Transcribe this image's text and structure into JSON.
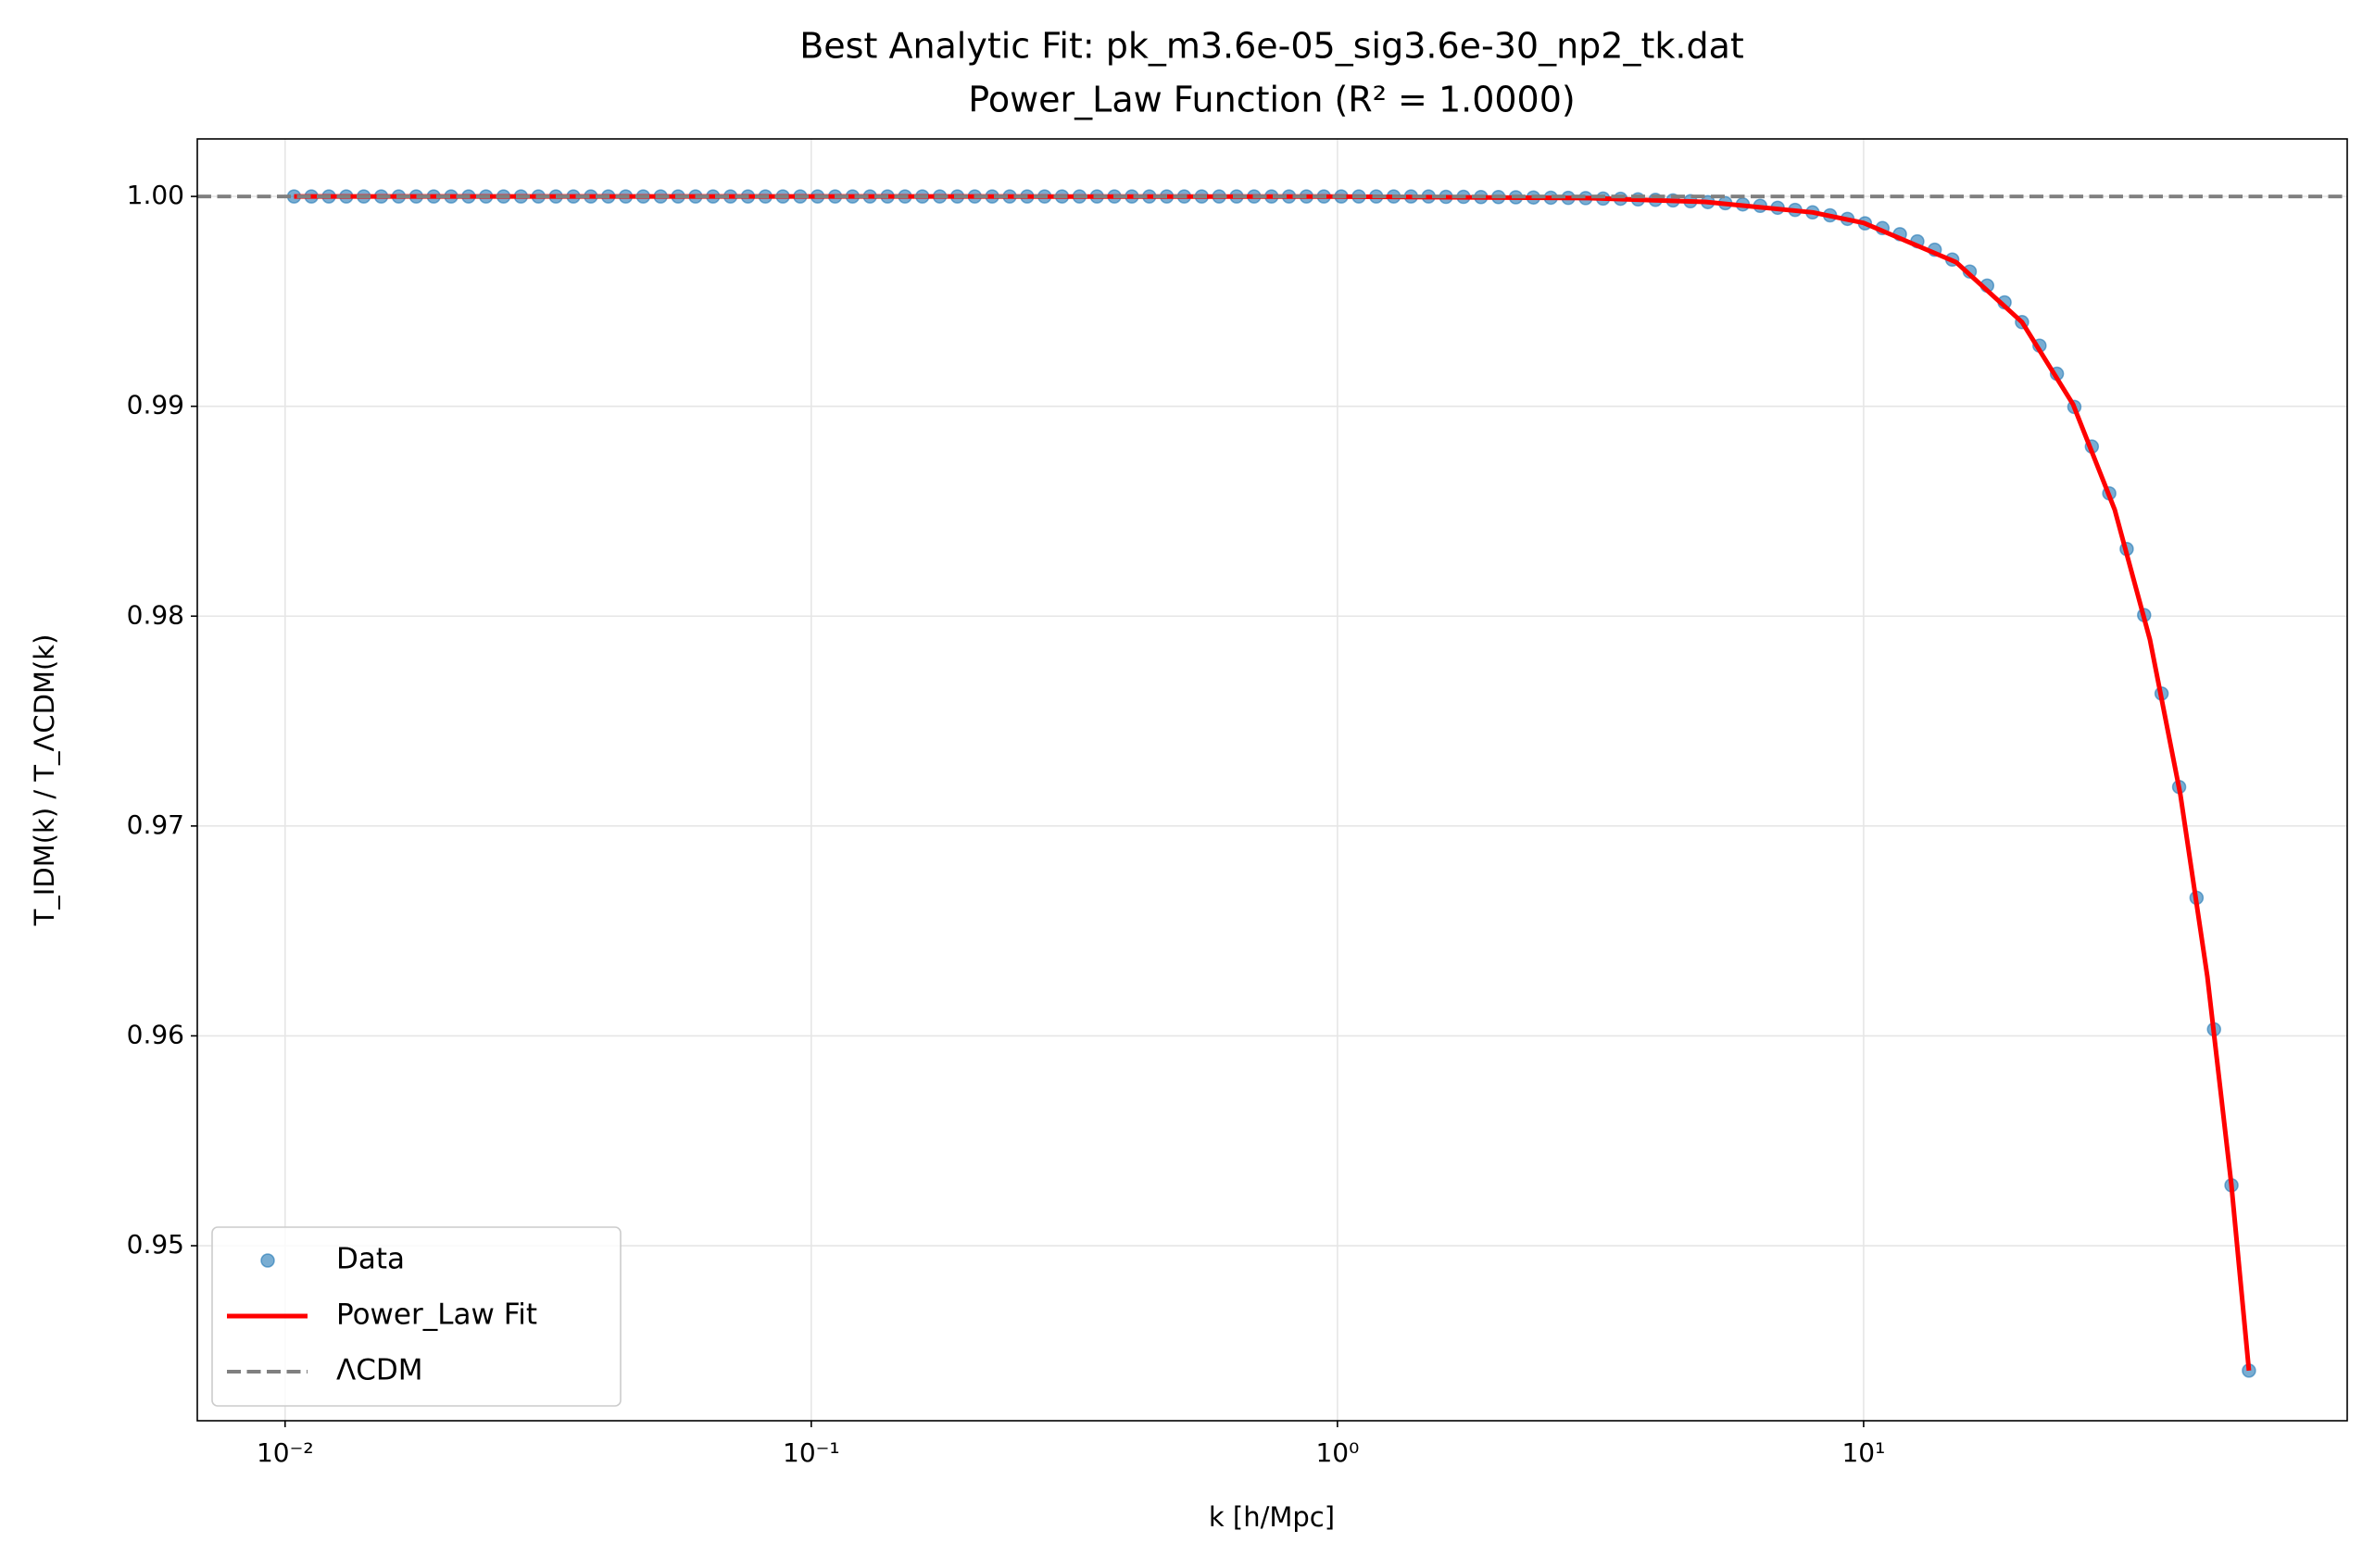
{
  "chart_data": {
    "type": "line",
    "title": "Best Analytic Fit: pk_m3.6e-05_sig3.6e-30_np2_tk.dat",
    "subtitle": "Power_Law Function (R² = 1.0000)",
    "x_label": "k [h/Mpc]",
    "y_label": "T_IDM(k) / T_ΛCDM(k)",
    "x_scale": "log",
    "xlim": [
      0.00681,
      83
    ],
    "ylim": [
      0.94166,
      1.00274
    ],
    "xticks": [
      {
        "value": 0.01,
        "label": "10⁻²"
      },
      {
        "value": 0.1,
        "label": "10⁻¹"
      },
      {
        "value": 1,
        "label": "10⁰"
      },
      {
        "value": 10,
        "label": "10¹"
      }
    ],
    "yticks": [
      0.95,
      0.96,
      0.97,
      0.98,
      0.99,
      {
        "value": 1,
        "label": "1.00"
      }
    ],
    "grid": true,
    "legend": "lower left",
    "series": [
      {
        "name": "Data",
        "type": "scatter",
        "color": "#1f77b4",
        "x": [
          0.0104,
          0.01122,
          0.01211,
          0.01307,
          0.01411,
          0.01523,
          0.01644,
          0.01775,
          0.01916,
          0.02068,
          0.02232,
          0.02409,
          0.02601,
          0.02807,
          0.0303,
          0.03271,
          0.03531,
          0.03811,
          0.04114,
          0.0444,
          0.04793,
          0.05173,
          0.05584,
          0.06026,
          0.06505,
          0.07022,
          0.07579,
          0.08181,
          0.0883,
          0.09528,
          0.1028,
          0.111,
          0.1198,
          0.1293,
          0.1396,
          0.1507,
          0.1626,
          0.1755,
          0.1895,
          0.2045,
          0.2207,
          0.2383,
          0.2572,
          0.2776,
          0.2996,
          0.3234,
          0.3491,
          0.3768,
          0.4067,
          0.439,
          0.4738,
          0.5114,
          0.5521,
          0.5959,
          0.6432,
          0.6943,
          0.7494,
          0.8089,
          0.8731,
          0.9423,
          1.017,
          1.098,
          1.185,
          1.279,
          1.38,
          1.49,
          1.608,
          1.736,
          1.874,
          2.023,
          2.183,
          2.357,
          2.544,
          2.746,
          2.963,
          3.198,
          3.452,
          3.726,
          4.022,
          4.342,
          4.686,
          5.058,
          5.46,
          5.893,
          6.36,
          6.865,
          7.41,
          7.998,
          8.633,
          9.318,
          10.06,
          10.86,
          11.72,
          12.65,
          13.65,
          14.74,
          15.91,
          17.17,
          18.53,
          20.0,
          21.59,
          23.3,
          25.15,
          27.15,
          29.3,
          31.62,
          34.13,
          36.84,
          39.78,
          42.93,
          46.34,
          50.02,
          53.99
        ],
        "values": [
          1,
          1,
          1,
          1,
          1,
          1,
          1,
          1,
          1,
          1,
          1,
          1,
          1,
          1,
          1,
          1,
          1,
          1,
          1,
          1,
          1,
          1,
          1,
          1,
          1,
          1,
          1,
          1,
          1,
          1,
          1,
          1,
          1,
          1,
          1,
          1,
          1,
          1,
          1,
          1,
          1,
          1,
          1,
          1,
          1,
          1,
          1,
          1,
          1,
          1,
          1,
          1,
          1,
          1,
          1,
          1,
          1,
          1,
          1,
          1,
          1,
          1,
          1,
          1,
          1,
          1,
          0.99998,
          0.99998,
          0.99997,
          0.99997,
          0.99996,
          0.99995,
          0.99994,
          0.99993,
          0.99992,
          0.9999,
          0.99989,
          0.99986,
          0.99984,
          0.99981,
          0.99977,
          0.99973,
          0.99968,
          0.99962,
          0.99955,
          0.99946,
          0.99936,
          0.99924,
          0.9991,
          0.99893,
          0.99872,
          0.99849,
          0.9982,
          0.99786,
          0.99746,
          0.99699,
          0.99642,
          0.99575,
          0.99495,
          0.99401,
          0.99289,
          0.99155,
          0.98997,
          0.98808,
          0.98585,
          0.9832,
          0.98005,
          0.97631,
          0.97186,
          0.96658,
          0.96031,
          0.95288,
          0.94405
        ]
      },
      {
        "name": "Power_Law Fit",
        "type": "line",
        "color": "#ff0000",
        "x": [
          0.0104,
          0.1,
          1,
          3,
          5,
          8,
          10,
          15,
          20,
          25,
          30,
          35,
          40,
          45,
          50,
          53.99
        ],
        "values": [
          1,
          1,
          0.99999,
          0.99992,
          0.99974,
          0.99924,
          0.99874,
          0.99686,
          0.99401,
          0.9901,
          0.98508,
          0.97889,
          0.97149,
          0.96284,
          0.9529,
          0.94405
        ]
      },
      {
        "name": "ΛCDM",
        "type": "hline",
        "color": "#808080",
        "dashed": true,
        "values": [
          1
        ]
      }
    ]
  }
}
